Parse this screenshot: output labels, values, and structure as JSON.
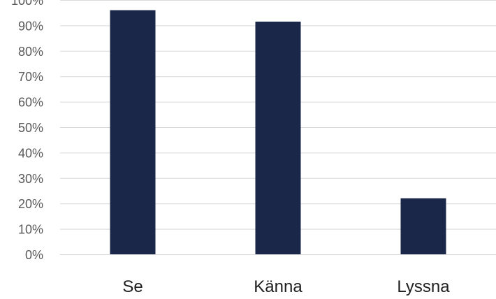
{
  "chart_data": {
    "type": "bar",
    "categories": [
      "Se",
      "Känna",
      "Lyssna"
    ],
    "values": [
      96,
      91.5,
      22
    ],
    "ylim": [
      0,
      100
    ],
    "yticks": [
      0,
      10,
      20,
      30,
      40,
      50,
      60,
      70,
      80,
      90,
      100
    ],
    "ytick_labels": [
      "0%",
      "10%",
      "20%",
      "30%",
      "40%",
      "50%",
      "60%",
      "70%",
      "80%",
      "90%",
      "100%"
    ],
    "grid": true,
    "legend": "none",
    "colors": {
      "bar": "#1b2748",
      "grid": "#d9d9d9"
    }
  }
}
